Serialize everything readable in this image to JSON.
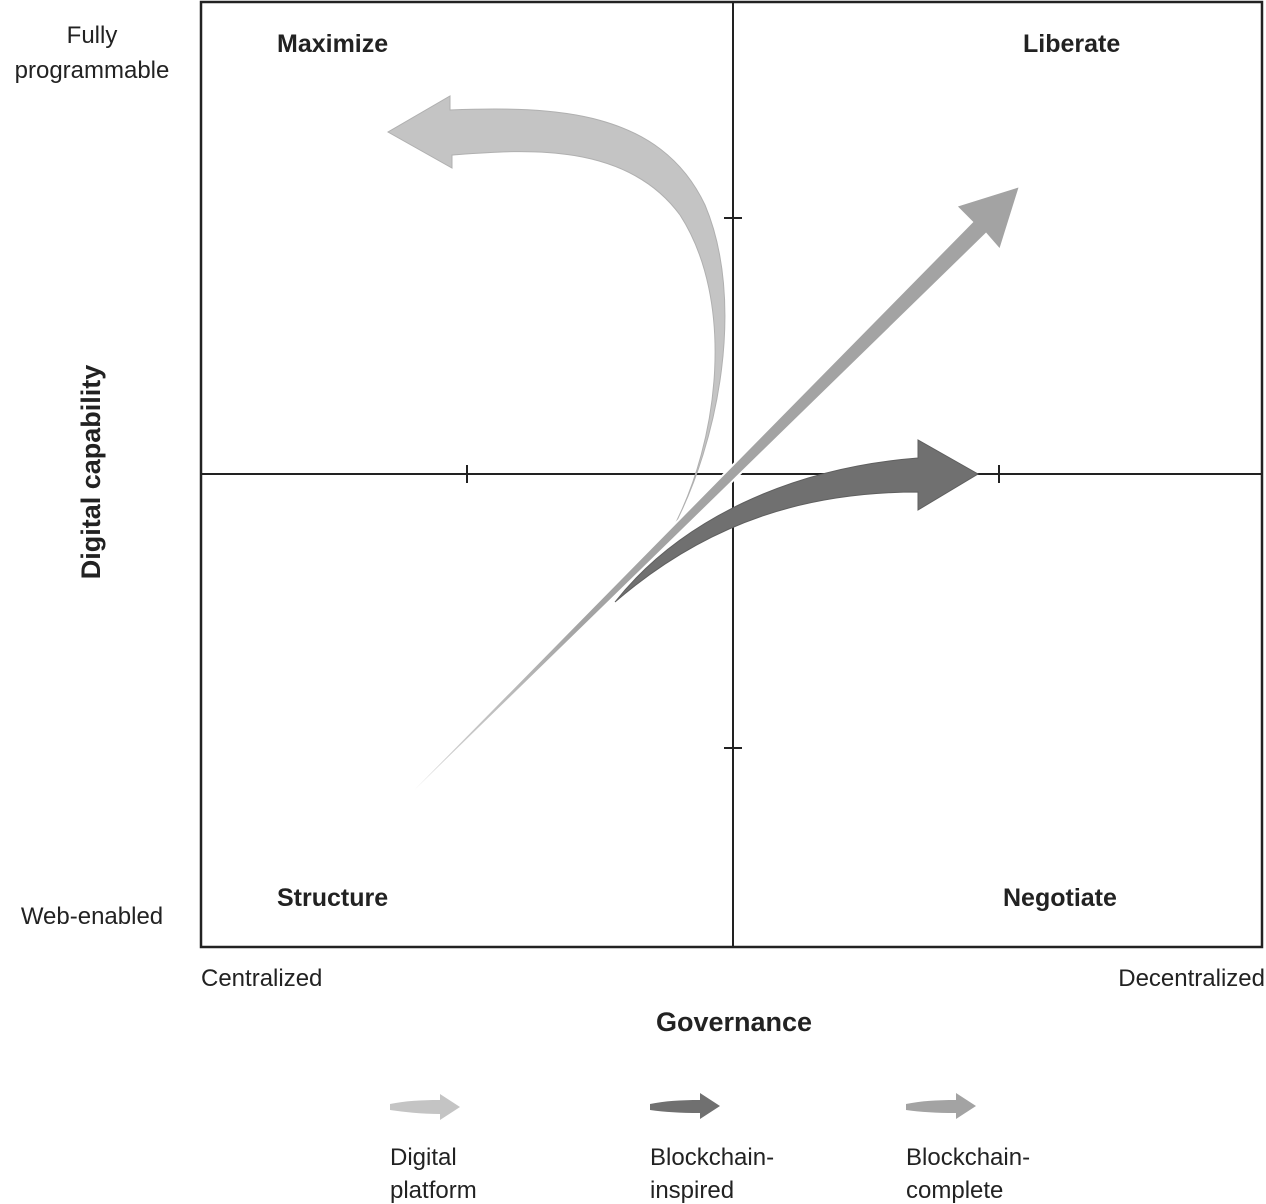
{
  "quadrants": {
    "top_left": "Maximize",
    "top_right": "Liberate",
    "bottom_left": "Structure",
    "bottom_right": "Negotiate"
  },
  "y_axis": {
    "title": "Digital capability",
    "top_line1": "Fully",
    "top_line2": "programmable",
    "bottom": "Web-enabled"
  },
  "x_axis": {
    "title": "Governance",
    "left": "Centralized",
    "right": "Decentralized"
  },
  "legend": [
    {
      "line1": "Digital",
      "line2": "platform",
      "color": "#c4c4c4"
    },
    {
      "line1": "Blockchain-",
      "line2": "inspired",
      "color": "#707070"
    },
    {
      "line1": "Blockchain-",
      "line2": "complete",
      "color": "#a3a3a3"
    }
  ],
  "colors": {
    "digital_platform": "#c4c4c4",
    "blockchain_inspired": "#707070",
    "blockchain_complete": "#a3a3a3",
    "frame": "#222222"
  }
}
